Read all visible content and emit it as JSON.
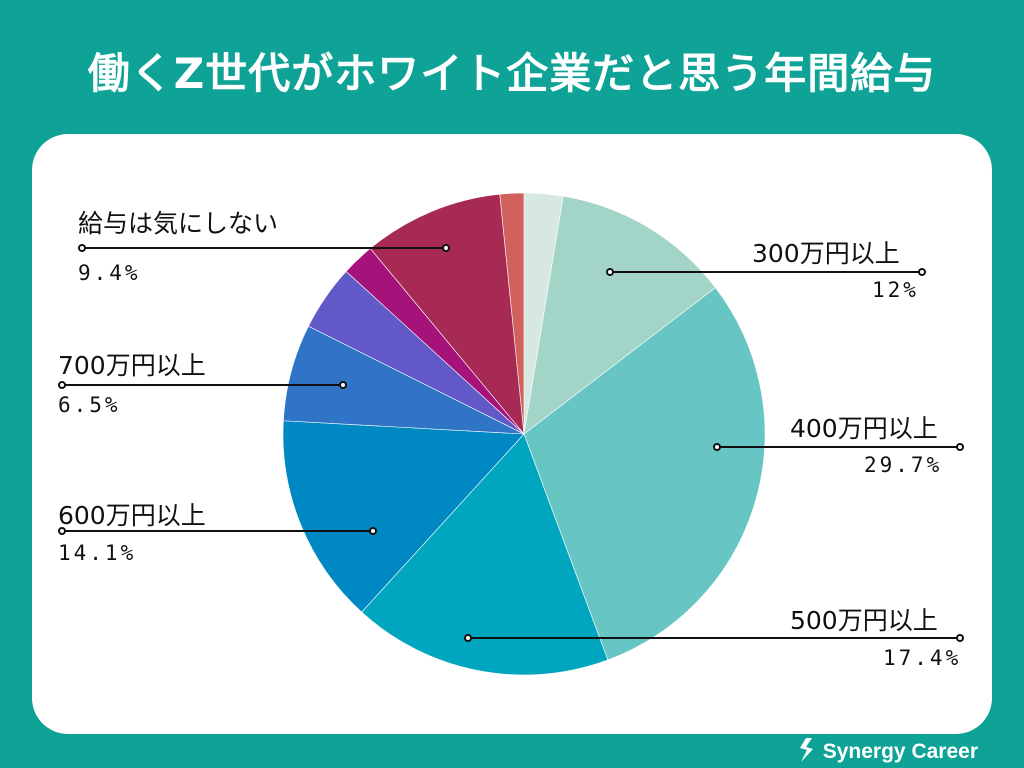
{
  "title": "働くZ世代がホワイト企業だと思う年間給与",
  "brand": "Synergy Career",
  "chart_data": {
    "type": "pie",
    "title": "働くZ世代がホワイト企業だと思う年間給与",
    "start_angle_deg": 0,
    "direction": "clockwise",
    "slices": [
      {
        "label": "",
        "percent_text": "",
        "value": 2.6,
        "color": "#d6e8e0"
      },
      {
        "label": "300万円以上",
        "percent_text": "12%",
        "value": 12,
        "color": "#a2d4c8"
      },
      {
        "label": "400万円以上",
        "percent_text": "29.7%",
        "value": 29.7,
        "color": "#67c6c3"
      },
      {
        "label": "500万円以上",
        "percent_text": "17.4%",
        "value": 17.4,
        "color": "#00a6bf"
      },
      {
        "label": "600万円以上",
        "percent_text": "14.1%",
        "value": 14.1,
        "color": "#0088c2"
      },
      {
        "label": "700万円以上",
        "percent_text": "6.5%",
        "value": 6.5,
        "color": "#3074c7"
      },
      {
        "label": "",
        "percent_text": "",
        "value": 4.4,
        "color": "#6159c8"
      },
      {
        "label": "",
        "percent_text": "",
        "value": 2.2,
        "color": "#a4127a"
      },
      {
        "label": "給与は気にしない",
        "percent_text": "9.4%",
        "value": 9.4,
        "color": "#a72a55"
      },
      {
        "label": "",
        "percent_text": "",
        "value": 1.6,
        "color": "#d2605c"
      }
    ]
  },
  "colors": {
    "background": "#0fa397",
    "card": "#ffffff",
    "text": "#111111",
    "leader": "#111111"
  }
}
